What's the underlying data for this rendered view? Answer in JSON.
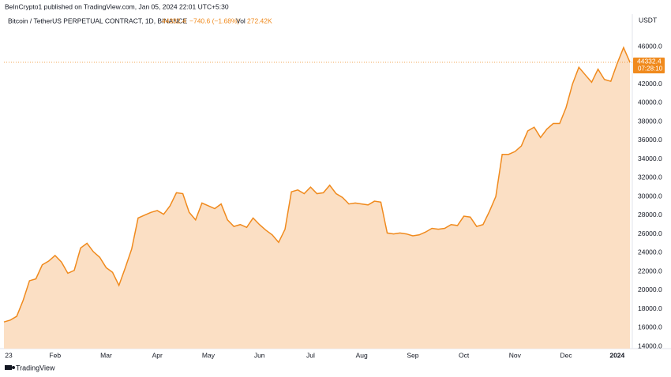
{
  "header": {
    "published": "BeInCrypto1 published on TradingView.com, Jan 05, 2024 22:01 UTC+5:30",
    "symbol": "Bitcoin / TetherUS PERPETUAL CONTRACT, 1D, BINANCE",
    "change": "−740.6 (−1.68%)",
    "volume_label": "Vol",
    "volume": "272.42K"
  },
  "chart_data": {
    "type": "area",
    "currency": "USDT",
    "countdown": "07:28:10",
    "color": "#f08a1d",
    "fill_color": "#fbdfc4",
    "grid": false,
    "categories": [
      "23",
      null,
      null,
      null,
      null,
      null,
      null,
      null,
      "Feb",
      null,
      null,
      null,
      null,
      null,
      null,
      null,
      "Mar",
      null,
      null,
      null,
      null,
      null,
      null,
      null,
      "Apr",
      null,
      null,
      null,
      null,
      null,
      null,
      null,
      "May",
      null,
      null,
      null,
      null,
      null,
      null,
      null,
      "Jun",
      null,
      null,
      null,
      null,
      null,
      null,
      null,
      "Jul",
      null,
      null,
      null,
      null,
      null,
      null,
      null,
      "Aug",
      null,
      null,
      null,
      null,
      null,
      null,
      null,
      "Sep",
      null,
      null,
      null,
      null,
      null,
      null,
      null,
      "Oct",
      null,
      null,
      null,
      null,
      null,
      null,
      null,
      "Nov",
      null,
      null,
      null,
      null,
      null,
      null,
      null,
      "Dec",
      null,
      null,
      null,
      null,
      null,
      null,
      null,
      "2024",
      null,
      null
    ],
    "values": [
      16600,
      16800,
      17200,
      18900,
      21000,
      21200,
      22700,
      23100,
      23700,
      23000,
      21800,
      22100,
      24500,
      25000,
      24100,
      23500,
      22400,
      21900,
      20500,
      22400,
      24400,
      27700,
      28000,
      28300,
      28500,
      28100,
      29000,
      30400,
      30300,
      28300,
      27500,
      29300,
      29000,
      28700,
      29200,
      27500,
      26800,
      27000,
      26700,
      27700,
      27000,
      26400,
      25900,
      25100,
      26500,
      30500,
      30700,
      30300,
      31000,
      30300,
      30400,
      31200,
      30300,
      29900,
      29200,
      29300,
      29200,
      29100,
      29500,
      29400,
      26100,
      26000,
      26100,
      26000,
      25800,
      25900,
      26200,
      26600,
      26500,
      26600,
      27000,
      26900,
      27900,
      27800,
      26800,
      27000,
      28400,
      30000,
      34500,
      34500,
      34800,
      35400,
      37000,
      37400,
      36300,
      37200,
      37800,
      37800,
      39500,
      42000,
      43800,
      43000,
      42200,
      43600,
      42500,
      42300,
      44200,
      45900,
      44332.4
    ],
    "ylim": [
      13750,
      49470
    ],
    "yticks": [
      {
        "value": 14000,
        "label": "14000.0"
      },
      {
        "value": 16000,
        "label": "16000.0"
      },
      {
        "value": 18000,
        "label": "18000.0"
      },
      {
        "value": 20000,
        "label": "20000.0"
      },
      {
        "value": 22000,
        "label": "22000.0"
      },
      {
        "value": 24000,
        "label": "24000.0"
      },
      {
        "value": 26000,
        "label": "26000.0"
      },
      {
        "value": 28000,
        "label": "28000.0"
      },
      {
        "value": 30000,
        "label": "30000.0"
      },
      {
        "value": 32000,
        "label": "32000.0"
      },
      {
        "value": 34000,
        "label": "34000.0"
      },
      {
        "value": 36000,
        "label": "36000.0"
      },
      {
        "value": 38000,
        "label": "38000.0"
      },
      {
        "value": 40000,
        "label": "40000.0"
      },
      {
        "value": 42000,
        "label": "42000.0"
      },
      {
        "value": 44000,
        "label": "44000.0"
      },
      {
        "value": 46000,
        "label": "46000.0"
      }
    ]
  },
  "footer": {
    "brand": "TradingView"
  }
}
